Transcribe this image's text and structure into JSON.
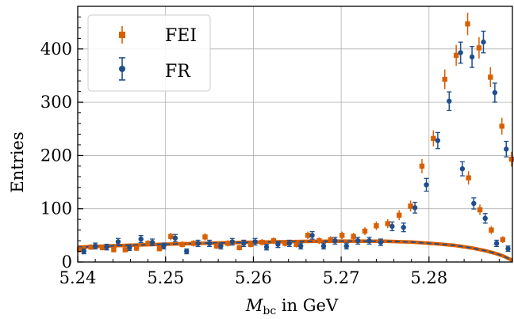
{
  "chart_data": {
    "type": "scatter",
    "xlabel_main": "M",
    "xlabel_sub": "bc",
    "xlabel_suffix": " in GeV",
    "ylabel": "Entries",
    "xlim": [
      5.24,
      5.2895
    ],
    "ylim": [
      0,
      480
    ],
    "x_ticks": [
      5.24,
      5.25,
      5.26,
      5.27,
      5.28
    ],
    "x_tick_labels": [
      "5.24",
      "5.25",
      "5.26",
      "5.27",
      "5.28"
    ],
    "y_ticks": [
      0,
      100,
      200,
      300,
      400
    ],
    "y_tick_labels": [
      "0",
      "100",
      "200",
      "300",
      "400"
    ],
    "grid": true,
    "legend_position": "top-left",
    "series": [
      {
        "name": "FEI",
        "color": "#d95f02",
        "marker": "square",
        "x": [
          5.2402,
          5.2415,
          5.2428,
          5.2441,
          5.2454,
          5.2467,
          5.248,
          5.2493,
          5.2506,
          5.2519,
          5.2532,
          5.2545,
          5.2558,
          5.2571,
          5.2584,
          5.2597,
          5.261,
          5.2623,
          5.2636,
          5.2649,
          5.2662,
          5.2675,
          5.2688,
          5.2701,
          5.2714,
          5.2727,
          5.274,
          5.2753,
          5.2766,
          5.2779,
          5.2792,
          5.2805,
          5.2818,
          5.2831,
          5.2844,
          5.2857,
          5.287,
          5.2883,
          5.2894
        ],
        "y": [
          23,
          28,
          27,
          23,
          23,
          26,
          35,
          25,
          48,
          33,
          35,
          47,
          30,
          35,
          27,
          33,
          37,
          40,
          35,
          33,
          50,
          40,
          42,
          50,
          48,
          58,
          68,
          72,
          88,
          105,
          180,
          232,
          343,
          388,
          447,
          402,
          347,
          255,
          193
        ]
      },
      {
        "name": "FR",
        "color": "#1f4e8c",
        "marker": "circle",
        "x": [
          5.2407,
          5.242,
          5.2433,
          5.2446,
          5.2459,
          5.2472,
          5.2485,
          5.2498,
          5.2511,
          5.2524,
          5.2537,
          5.255,
          5.2563,
          5.2576,
          5.2589,
          5.2602,
          5.2615,
          5.2628,
          5.2641,
          5.2654,
          5.2667,
          5.268,
          5.2693,
          5.2706,
          5.2719,
          5.2732,
          5.2745,
          5.2758,
          5.2771,
          5.2784,
          5.2797,
          5.281,
          5.2823,
          5.2836,
          5.2849,
          5.2862,
          5.2875,
          5.2888
        ],
        "y": [
          20,
          30,
          28,
          38,
          27,
          43,
          37,
          30,
          45,
          20,
          35,
          35,
          30,
          38,
          35,
          38,
          28,
          33,
          35,
          30,
          50,
          30,
          40,
          30,
          40,
          40,
          37,
          67,
          65,
          102,
          145,
          228,
          302,
          393,
          385,
          413,
          318,
          212
        ]
      }
    ],
    "fit_curve": {
      "color_outer": "#d95f02",
      "color_inner": "#1f4e8c",
      "x": [
        5.24,
        5.245,
        5.25,
        5.255,
        5.26,
        5.265,
        5.27,
        5.275,
        5.278,
        5.281,
        5.283,
        5.285,
        5.2865,
        5.2875,
        5.2885,
        5.2895
      ],
      "y": [
        28,
        31,
        33.5,
        35.5,
        37.2,
        38.5,
        39.2,
        39,
        37.5,
        34,
        31,
        26,
        21,
        16.5,
        11,
        3
      ]
    }
  },
  "overflow_points": [
    {
      "series": "FR",
      "x": 5.2838,
      "y": 175
    },
    {
      "series": "FR",
      "x": 5.2851,
      "y": 110
    },
    {
      "series": "FR",
      "x": 5.2864,
      "y": 82
    },
    {
      "series": "FR",
      "x": 5.2877,
      "y": 35
    },
    {
      "series": "FR",
      "x": 5.289,
      "y": 25
    },
    {
      "series": "FEI",
      "x": 5.2845,
      "y": 158
    },
    {
      "series": "FEI",
      "x": 5.2858,
      "y": 98
    },
    {
      "series": "FEI",
      "x": 5.2871,
      "y": 60
    },
    {
      "series": "FEI",
      "x": 5.2884,
      "y": 42
    }
  ]
}
